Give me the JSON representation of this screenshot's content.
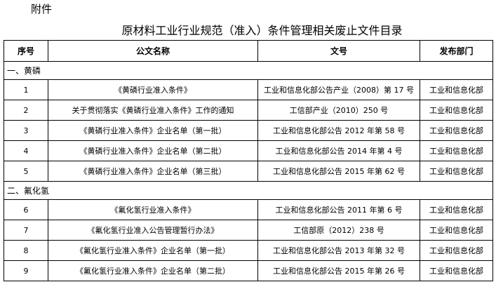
{
  "attachment_label": "附件",
  "title": "原材料工业行业规范（准入）条件管理相关废止文件目录",
  "headers": [
    "序号",
    "公文名称",
    "文号",
    "发布部门"
  ],
  "sections": [
    {
      "label": "一、黄磷",
      "rows": [
        [
          "1",
          "《黄磷行业准入条件》",
          "工业和信息化部公告产业（2008）第 17 号",
          "工业和信息化部"
        ],
        [
          "2",
          "关于贯彻落实《黄磷行业准入条件》工作的通知",
          "工信部产业（2010）250 号",
          "工业和信息化部"
        ],
        [
          "3",
          "《黄磷行业准入条件》企业名单（第一批）",
          "工业和信息化部公告 2012 年第 58 号",
          "工业和信息化部"
        ],
        [
          "4",
          "《黄磷行业准入条件》企业名单（第二批）",
          "工业和信息化部公告 2014 年第 4 号",
          "工业和信息化部"
        ],
        [
          "5",
          "《黄磷行业准入条件》企业名单（第三批）",
          "工业和信息化部公告 2015 年第 62 号",
          "工业和信息化部"
        ]
      ]
    },
    {
      "label": "二、氟化氢",
      "rows": [
        [
          "6",
          "《氟化氢行业准入条件》",
          "工业和信息化部公告 2011 年第 6 号",
          "工业和信息化部"
        ],
        [
          "7",
          "《氟化氢行业准入公告管理暂行办法》",
          "工信部原（2012）238 号",
          "工业和信息化部"
        ],
        [
          "8",
          "《氟化氢行业准入条件》企业名单（第一批）",
          "工业和信息化部公告 2013 年第 32 号",
          "工业和信息化部"
        ],
        [
          "9",
          "《氟化氢行业准入条件》企业名单（第二批）",
          "工业和信息化部公告 2015 年第 26 号",
          "工业和信息化部"
        ]
      ]
    }
  ]
}
